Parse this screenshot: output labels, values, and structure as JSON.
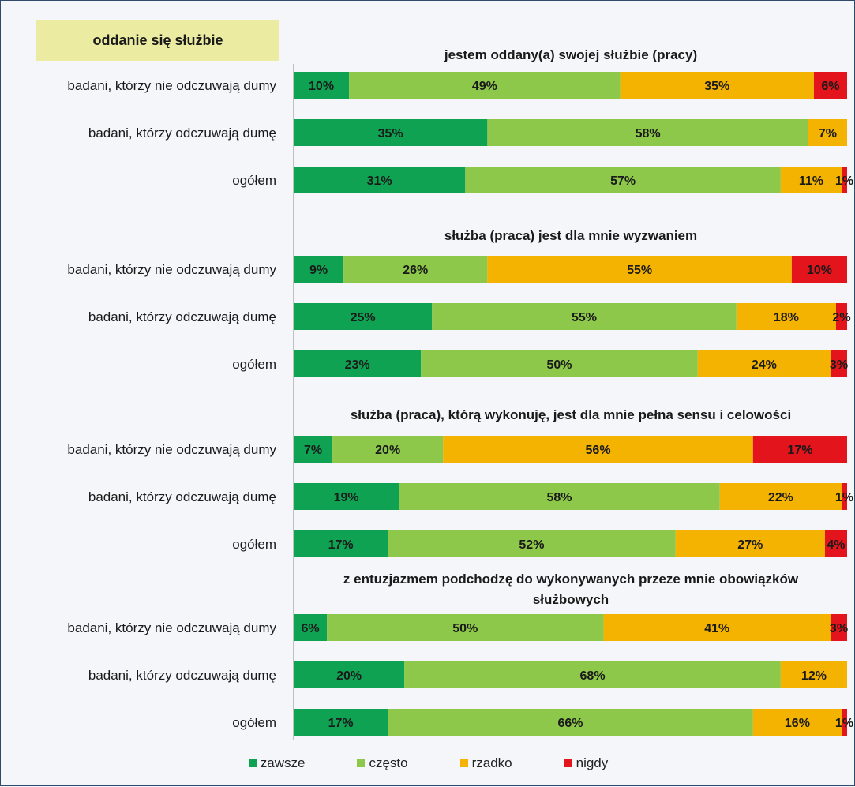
{
  "header": {
    "badge": "oddanie się służbie"
  },
  "chart_data": {
    "type": "bar",
    "orientation": "horizontal",
    "stacked": true,
    "xlim": [
      0,
      100
    ],
    "grid": false,
    "legend_position": "bottom",
    "series": [
      {
        "name": "zawsze",
        "color": "#0fa253"
      },
      {
        "name": "często",
        "color": "#8dc84b"
      },
      {
        "name": "rzadko",
        "color": "#f3b300"
      },
      {
        "name": "nigdy",
        "color": "#e3141b"
      }
    ],
    "groups": [
      {
        "title": "jestem oddany(a) swojej służbie (pracy)",
        "rows": [
          {
            "label": "badani, którzy nie odczuwają dumy",
            "values": [
              10,
              49,
              35,
              6
            ],
            "labels": [
              "10%",
              "49%",
              "35%",
              "6%"
            ]
          },
          {
            "label": "badani, którzy odczuwają dumę",
            "values": [
              35,
              58,
              7
            ],
            "labels": [
              "35%",
              "58%",
              "7%"
            ]
          },
          {
            "label": "ogółem",
            "values": [
              31,
              57,
              11,
              1
            ],
            "labels": [
              "31%",
              "57%",
              "11%",
              "1%"
            ]
          }
        ]
      },
      {
        "title": "służba (praca) jest dla mnie wyzwaniem",
        "rows": [
          {
            "label": "badani, którzy nie odczuwają dumy",
            "values": [
              9,
              26,
              55,
              10
            ],
            "labels": [
              "9%",
              "26%",
              "55%",
              "10%"
            ]
          },
          {
            "label": "badani, którzy odczuwają dumę",
            "values": [
              25,
              55,
              18,
              2
            ],
            "labels": [
              "25%",
              "55%",
              "18%",
              "2%"
            ]
          },
          {
            "label": "ogółem",
            "values": [
              23,
              50,
              24,
              3
            ],
            "labels": [
              "23%",
              "50%",
              "24%",
              "3%"
            ]
          }
        ]
      },
      {
        "title": "służba (praca), którą wykonuję, jest dla mnie pełna sensu i celowości",
        "rows": [
          {
            "label": "badani, którzy nie odczuwają dumy",
            "values": [
              7,
              20,
              56,
              17
            ],
            "labels": [
              "7%",
              "20%",
              "56%",
              "17%"
            ]
          },
          {
            "label": "badani, którzy odczuwają dumę",
            "values": [
              19,
              58,
              22,
              1
            ],
            "labels": [
              "19%",
              "58%",
              "22%",
              "1%"
            ]
          },
          {
            "label": "ogółem",
            "values": [
              17,
              52,
              27,
              4
            ],
            "labels": [
              "17%",
              "52%",
              "27%",
              "4%"
            ]
          }
        ]
      },
      {
        "title": "z entuzjazmem podchodzę do wykonywanych przeze mnie obowiązków służbowych",
        "title_lines": [
          "z entuzjazmem podchodzę do wykonywanych przeze mnie obowiązków",
          "służbowych"
        ],
        "rows": [
          {
            "label": "badani, którzy nie odczuwają dumy",
            "values": [
              6,
              50,
              41,
              3
            ],
            "labels": [
              "6%",
              "50%",
              "41%",
              "3%"
            ]
          },
          {
            "label": "badani, którzy odczuwają dumę",
            "values": [
              20,
              68,
              12
            ],
            "labels": [
              "20%",
              "68%",
              "12%"
            ]
          },
          {
            "label": "ogółem",
            "values": [
              17,
              66,
              16,
              1
            ],
            "labels": [
              "17%",
              "66%",
              "16%",
              "1%"
            ]
          }
        ]
      }
    ]
  }
}
